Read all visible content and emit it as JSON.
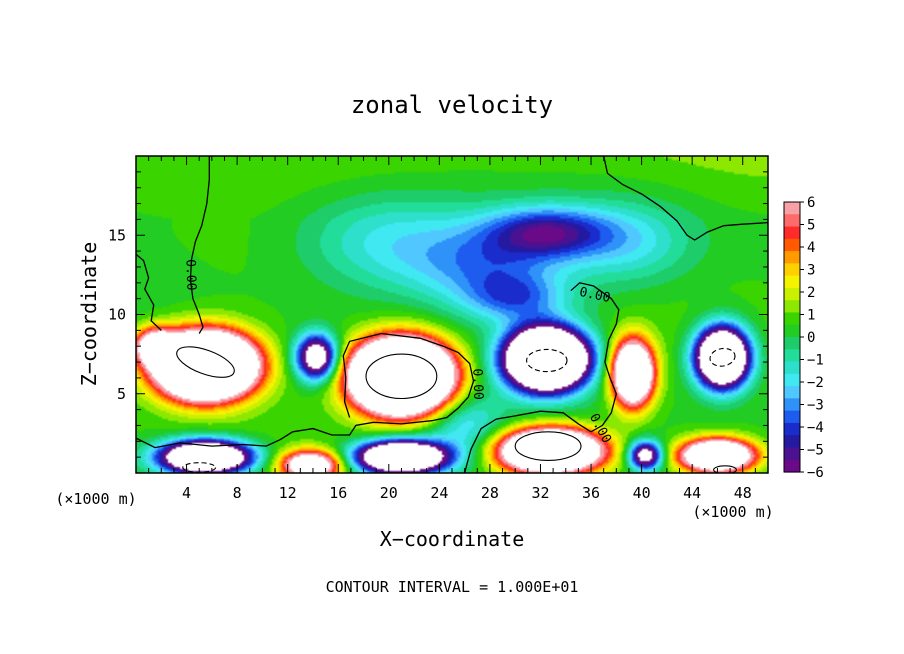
{
  "chart_data": {
    "type": "heatmap",
    "title": "zonal velocity",
    "xlabel": "X−coordinate",
    "ylabel": "Z−coordinate",
    "x_unit_left": "(×1000 m)",
    "x_unit_right": "(×1000 m)",
    "footer": "CONTOUR INTERVAL = 1.000E+01",
    "xlim": [
      0,
      50
    ],
    "ylim": [
      0,
      20
    ],
    "x_ticks": [
      4,
      8,
      12,
      16,
      20,
      24,
      28,
      32,
      36,
      40,
      44,
      48
    ],
    "x_tick_labels": [
      "4",
      "8",
      "12",
      "16",
      "20",
      "24",
      "28",
      "32",
      "36",
      "40",
      "44",
      "48"
    ],
    "y_ticks": [
      5,
      10,
      15
    ],
    "y_tick_labels": [
      "5",
      "10",
      "15"
    ],
    "colorbar": {
      "range": [
        -6,
        6
      ],
      "tick_labels": [
        "6",
        "5",
        "4",
        "3",
        "2",
        "1",
        "0",
        "−1",
        "−2",
        "−3",
        "−4",
        "−5",
        "−6"
      ],
      "colors": [
        "#f7a0a6",
        "#ff6a6a",
        "#ff2a2a",
        "#ff5a00",
        "#ff9a00",
        "#ffd000",
        "#f4f400",
        "#c8f000",
        "#8ce800",
        "#3ad400",
        "#22cc22",
        "#1ecc6a",
        "#22dd99",
        "#2ee0cc",
        "#40e8f2",
        "#50c8ff",
        "#2e92f8",
        "#1e5cf0",
        "#1a2ccc",
        "#241aa2",
        "#4a1290",
        "#6a0a88"
      ]
    },
    "contour_labels": [
      {
        "text": "0.00",
        "x": 4.3,
        "y": 12.5,
        "rotate": 88
      },
      {
        "text": "0.00",
        "x": 27.0,
        "y": 5.6,
        "rotate": 88
      },
      {
        "text": "0.00",
        "x": 36.3,
        "y": 11.2,
        "rotate": 12
      },
      {
        "text": "0.00",
        "x": 36.7,
        "y": 2.8,
        "rotate": 62
      }
    ],
    "features": [
      {
        "kind": "positive",
        "x": 5.5,
        "y": 6.8,
        "amp": 24,
        "rx": 3.6,
        "ry": 1.9
      },
      {
        "kind": "positive",
        "x": 21.0,
        "y": 6.1,
        "amp": 26,
        "rx": 3.6,
        "ry": 2.1
      },
      {
        "kind": "positive",
        "x": 39.3,
        "y": 6.3,
        "amp": 14,
        "rx": 1.6,
        "ry": 2.0
      },
      {
        "kind": "positive",
        "x": 32.8,
        "y": 1.4,
        "amp": 18,
        "rx": 3.8,
        "ry": 1.3
      },
      {
        "kind": "positive",
        "x": 13.8,
        "y": 0.5,
        "amp": 10,
        "rx": 2.3,
        "ry": 0.9
      },
      {
        "kind": "positive",
        "x": 46.0,
        "y": 1.1,
        "amp": 14,
        "rx": 2.8,
        "ry": 1.0
      },
      {
        "kind": "positive",
        "x": 1.5,
        "y": 8.0,
        "amp": 8,
        "rx": 1.6,
        "ry": 1.1
      },
      {
        "kind": "negative",
        "x": 32.5,
        "y": 7.2,
        "amp": -22,
        "rx": 3.0,
        "ry": 1.8
      },
      {
        "kind": "negative",
        "x": 46.4,
        "y": 7.3,
        "amp": -17,
        "rx": 2.0,
        "ry": 1.8
      },
      {
        "kind": "negative",
        "x": 5.5,
        "y": 1.0,
        "amp": -16,
        "rx": 3.4,
        "ry": 1.0
      },
      {
        "kind": "negative",
        "x": 21.0,
        "y": 1.0,
        "amp": -16,
        "rx": 3.4,
        "ry": 1.0
      },
      {
        "kind": "negative",
        "x": 14.3,
        "y": 7.3,
        "amp": -10,
        "rx": 1.6,
        "ry": 1.4
      },
      {
        "kind": "negative",
        "x": 40.3,
        "y": 1.1,
        "amp": -9,
        "rx": 1.3,
        "ry": 0.9
      },
      {
        "kind": "negative",
        "x": 32.5,
        "y": 15.2,
        "amp": -4.8,
        "rx": 4.8,
        "ry": 1.6
      },
      {
        "kind": "negative",
        "x": 28.0,
        "y": 13.0,
        "amp": -3.0,
        "rx": 6.0,
        "ry": 2.5
      },
      {
        "kind": "negative",
        "x": 30.0,
        "y": 11.0,
        "amp": -3.0,
        "rx": 4.0,
        "ry": 1.5
      },
      {
        "kind": "negative",
        "x": 20.0,
        "y": 14.5,
        "amp": -2.4,
        "rx": 7.0,
        "ry": 3.0
      },
      {
        "kind": "negative",
        "x": 39.0,
        "y": 14.5,
        "amp": -2.2,
        "rx": 5.0,
        "ry": 2.5
      },
      {
        "kind": "negative",
        "x": 26.0,
        "y": 3.0,
        "amp": -2.5,
        "rx": 3.0,
        "ry": 2.0
      }
    ],
    "contours": [
      {
        "x": 5.5,
        "y": 7.0,
        "rx": 2.4,
        "ry": 0.75,
        "rotate": 20,
        "dashed": false
      },
      {
        "x": 21.0,
        "y": 6.1,
        "rx": 2.8,
        "ry": 1.4,
        "rotate": 0,
        "dashed": false
      },
      {
        "x": 32.6,
        "y": 1.7,
        "rx": 2.6,
        "ry": 0.9,
        "rotate": 0,
        "dashed": false
      },
      {
        "x": 32.5,
        "y": 7.1,
        "rx": 1.6,
        "ry": 0.7,
        "rotate": 0,
        "dashed": true
      },
      {
        "x": 46.4,
        "y": 7.3,
        "rx": 1.0,
        "ry": 0.55,
        "rotate": -10,
        "dashed": true
      },
      {
        "x": 5.0,
        "y": 0.35,
        "rx": 1.3,
        "ry": 0.3,
        "rotate": 0,
        "dashed": true
      },
      {
        "x": 46.6,
        "y": 0.2,
        "rx": 0.9,
        "ry": 0.25,
        "rotate": 0,
        "dashed": false
      }
    ]
  }
}
